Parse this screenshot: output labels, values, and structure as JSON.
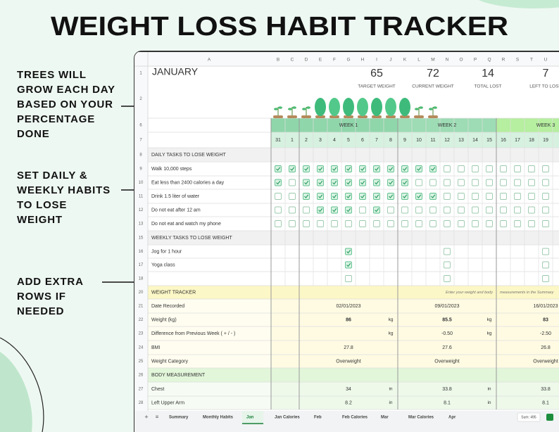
{
  "title": "WEIGHT LOSS HABIT TRACKER",
  "callouts": [
    [
      "TREES WILL",
      "GROW EACH DAY",
      "BASED ON YOUR",
      "PERCENTAGE",
      "DONE"
    ],
    [
      "SET DAILY &",
      "WEEKLY HABITS",
      "TO LOSE",
      "WEIGHT"
    ],
    [
      "ADD EXTRA",
      "ROWS IF",
      "NEEDED"
    ]
  ],
  "sheet": {
    "columns": [
      "A",
      "B",
      "C",
      "D",
      "E",
      "F",
      "G",
      "H",
      "I",
      "J",
      "K",
      "L",
      "M",
      "N",
      "O",
      "P",
      "Q",
      "R",
      "S",
      "T",
      "U"
    ],
    "row_numbers": [
      "1",
      "2",
      "6",
      "7",
      "8",
      "9",
      "10",
      "11",
      "12",
      "13",
      "15",
      "16",
      "17",
      "18",
      "20",
      "21",
      "22",
      "23",
      "24",
      "25",
      "26",
      "27",
      "28"
    ],
    "month": "JANUARY",
    "stats": [
      {
        "value": "65",
        "label": "TARGET WEIGHT"
      },
      {
        "value": "72",
        "label": "CURRENT WEIGHT"
      },
      {
        "value": "14",
        "label": "TOTAL LOST"
      },
      {
        "value": "7",
        "label": "LEFT TO LOSE"
      }
    ],
    "weeks": [
      "WEEK 1",
      "WEEK 2",
      "WEEK 3"
    ],
    "days": [
      "31",
      "1",
      "2",
      "3",
      "4",
      "5",
      "6",
      "7",
      "8",
      "9",
      "10",
      "11",
      "12",
      "13",
      "14",
      "15",
      "16",
      "17",
      "18",
      "19"
    ],
    "daily_header": "DAILY TASKS TO LOSE WEIGHT",
    "daily_tasks": [
      {
        "label": "Walk 10,000 steps",
        "checks": [
          true,
          true,
          true,
          true,
          true,
          true,
          true,
          true,
          true,
          true,
          true,
          true,
          false,
          false,
          false,
          false,
          false,
          false,
          false,
          false
        ]
      },
      {
        "label": "Eat less than 2400 calories a day",
        "checks": [
          true,
          false,
          true,
          true,
          true,
          true,
          true,
          true,
          true,
          true,
          false,
          false,
          false,
          false,
          false,
          false,
          false,
          false,
          false,
          false
        ]
      },
      {
        "label": "Drink 1.5 liter of water",
        "checks": [
          false,
          false,
          true,
          true,
          true,
          true,
          true,
          true,
          true,
          true,
          true,
          true,
          false,
          false,
          false,
          false,
          false,
          false,
          false,
          false
        ]
      },
      {
        "label": "Do not eat after 12 am",
        "checks": [
          false,
          false,
          false,
          true,
          true,
          true,
          false,
          true,
          false,
          false,
          false,
          false,
          false,
          false,
          false,
          false,
          false,
          false,
          false,
          false
        ]
      },
      {
        "label": "Do not eat and watch my phone",
        "checks": [
          false,
          false,
          false,
          false,
          false,
          false,
          false,
          false,
          false,
          false,
          false,
          false,
          false,
          false,
          false,
          false,
          false,
          false,
          false,
          false
        ]
      }
    ],
    "weekly_header": "WEEKLY TASKS TO LOSE WEIGHT",
    "weekly_tasks": [
      {
        "label": "Jog for 1 hour",
        "checks": [
          true,
          false,
          false
        ]
      },
      {
        "label": "Yoga class",
        "checks": [
          true,
          false,
          false
        ]
      },
      {
        "checks": [
          false,
          false,
          false
        ]
      }
    ],
    "tracker_header": "WEIGHT TRACKER",
    "tracker_note": [
      "Enter your weight and body",
      "measurements in the Summary"
    ],
    "tracker_rows": [
      {
        "label": "Date Recorded",
        "values": [
          "02/01/2023",
          "09/01/2023",
          "16/01/2023"
        ]
      },
      {
        "label": "Weight (kg)",
        "values": [
          "86",
          "85.5",
          "83"
        ],
        "unit": "kg",
        "bold": true
      },
      {
        "label": "Difference from Previous Week ( + / - )",
        "values": [
          null,
          "-0.50",
          "-2.50"
        ],
        "unit": "kg"
      },
      {
        "label": "BMI",
        "values": [
          "27.8",
          "27.6",
          "26.8"
        ]
      },
      {
        "label": "Weight Category",
        "values": [
          "Overweight",
          "Overweight",
          "Overweight"
        ]
      }
    ],
    "measure_header": "BODY MEASUREMENT",
    "measure_rows": [
      {
        "label": "Chest",
        "values": [
          "34",
          "33.8",
          "33.8"
        ],
        "unit": "in"
      },
      {
        "label": "Left Upper Arm",
        "values": [
          "8.2",
          "8.1",
          "8.1"
        ],
        "unit": "in"
      }
    ],
    "tabs": [
      "Summary",
      "Monthly Habits",
      "Jan",
      "Jan Calories",
      "Feb",
      "Feb Calories",
      "Mar",
      "Mar Calories",
      "Apr"
    ],
    "active_tab": 2,
    "sum": "Sum: 495"
  }
}
